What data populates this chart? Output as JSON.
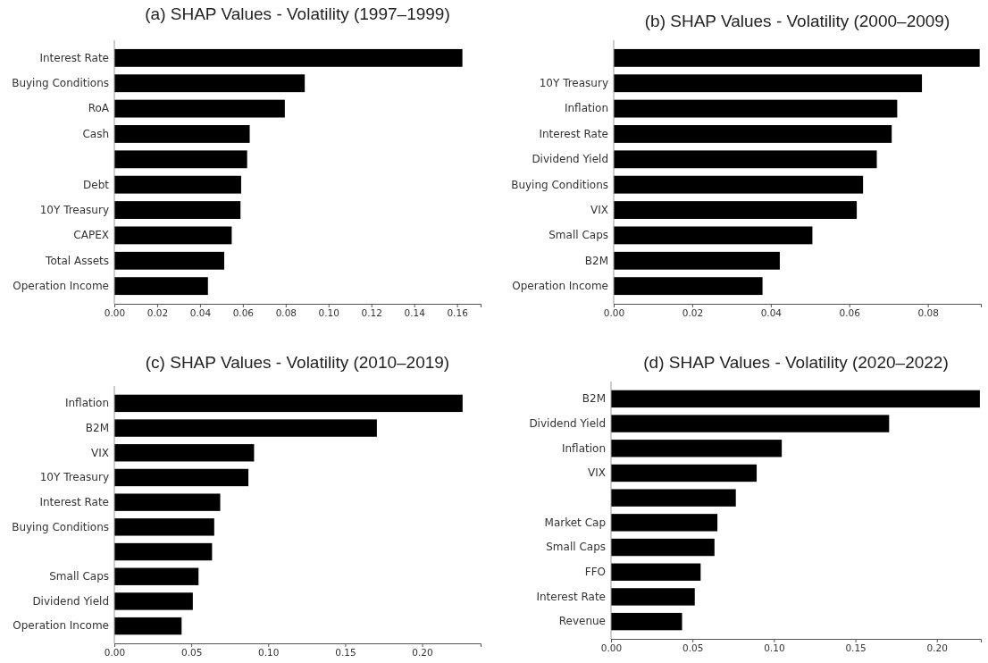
{
  "chart_data": [
    {
      "type": "bar",
      "orientation": "horizontal",
      "title": "(a) SHAP Values - Volatility (1997–1999)",
      "categories": [
        "Interest Rate",
        "Buying Conditions",
        "RoA",
        "Cash",
        null,
        "Debt",
        "10Y Treasury",
        "CAPEX",
        "Total Assets",
        "Operation Income"
      ],
      "values": [
        0.1625,
        0.0889,
        0.0796,
        0.0632,
        0.062,
        0.0592,
        0.0589,
        0.0548,
        0.0513,
        0.0437
      ],
      "color": "#000000",
      "xlim": [
        0,
        0.171
      ],
      "xticks": [
        {
          "value": 0,
          "label": "0.00"
        },
        {
          "value": 0.02,
          "label": "0.02"
        },
        {
          "value": 0.04,
          "label": "0.04"
        },
        {
          "value": 0.06,
          "label": "0.06"
        },
        {
          "value": 0.08,
          "label": "0.08"
        },
        {
          "value": 0.1,
          "label": "0.10"
        },
        {
          "value": 0.12,
          "label": "0.12"
        },
        {
          "value": 0.14,
          "label": "0.14"
        },
        {
          "value": 0.16,
          "label": "0.16"
        }
      ],
      "grid": false
    },
    {
      "type": "bar",
      "orientation": "horizontal",
      "title": "(b) SHAP Values - Volatility (2000–2009)",
      "categories": [
        null,
        "10Y Treasury",
        "Inflation",
        "Interest Rate",
        "Dividend Yield",
        "Buying Conditions",
        "VIX",
        "Small Caps",
        "B2M",
        "Operation Income"
      ],
      "values": [
        0.0932,
        0.0785,
        0.0722,
        0.0708,
        0.067,
        0.0635,
        0.0619,
        0.0506,
        0.0423,
        0.0379
      ],
      "color": "#000000",
      "xlim": [
        0,
        0.0935
      ],
      "xticks": [
        {
          "value": 0,
          "label": "0.00"
        },
        {
          "value": 0.02,
          "label": "0.02"
        },
        {
          "value": 0.04,
          "label": "0.04"
        },
        {
          "value": 0.06,
          "label": "0.06"
        },
        {
          "value": 0.08,
          "label": "0.08"
        }
      ],
      "grid": false
    },
    {
      "type": "bar",
      "orientation": "horizontal",
      "title": "(c) SHAP Values - Volatility (2010–2019)",
      "categories": [
        "Inflation",
        "B2M",
        "VIX",
        "10Y Treasury",
        "Interest Rate",
        "Buying Conditions",
        null,
        "Small Caps",
        "Dividend Yield",
        "Operation Income"
      ],
      "values": [
        0.2263,
        0.1706,
        0.0908,
        0.0871,
        0.0688,
        0.0649,
        0.0635,
        0.0547,
        0.051,
        0.0437
      ],
      "color": "#000000",
      "xlim": [
        0,
        0.238
      ],
      "xticks": [
        {
          "value": 0,
          "label": "0.00"
        },
        {
          "value": 0.05,
          "label": "0.05"
        },
        {
          "value": 0.1,
          "label": "0.10"
        },
        {
          "value": 0.15,
          "label": "0.15"
        },
        {
          "value": 0.2,
          "label": "0.20"
        }
      ],
      "grid": false
    },
    {
      "type": "bar",
      "orientation": "horizontal",
      "title": "(d) SHAP Values - Volatility (2020–2022)",
      "categories": [
        "B2M",
        "Dividend Yield",
        "Inflation",
        "VIX",
        null,
        "Market Cap",
        "Small Caps",
        "FFO",
        "Interest Rate",
        "Revenue"
      ],
      "values": [
        0.2264,
        0.1707,
        0.1048,
        0.0894,
        0.0766,
        0.0653,
        0.0635,
        0.055,
        0.0514,
        0.0436
      ],
      "color": "#000000",
      "xlim": [
        0,
        0.227
      ],
      "xticks": [
        {
          "value": 0,
          "label": "0.00"
        },
        {
          "value": 0.05,
          "label": "0.05"
        },
        {
          "value": 0.1,
          "label": "0.10"
        },
        {
          "value": 0.15,
          "label": "0.15"
        },
        {
          "value": 0.2,
          "label": "0.20"
        }
      ],
      "grid": false
    }
  ]
}
